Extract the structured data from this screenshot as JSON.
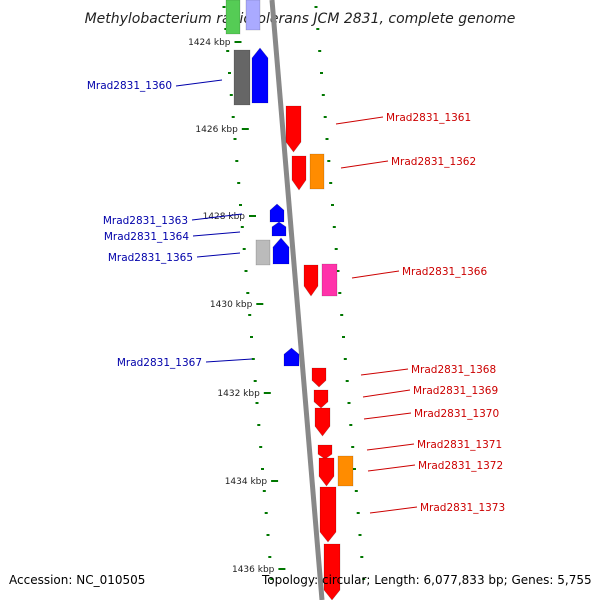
{
  "title": "Methylobacterium radiotolerans JCM 2831, complete genome",
  "accession": "Accession: NC_010505",
  "topology": "Topology: circular; Length: 6,077,833 bp; Genes: 5,755",
  "colors": {
    "forward": "#0000ff",
    "reverse": "#ff0000",
    "forward_label": "#0000aa",
    "reverse_label": "#cc0000",
    "tick": "#007700",
    "strand": "#888888",
    "gray_gene": "#666666",
    "light_gray_gene": "#bbbbbb",
    "orange_gene": "#ff8c00",
    "pink_gene": "#ff33aa",
    "green_gene": "#55cc55",
    "lavender_gene": "#aaaaff"
  },
  "scale_marks": [
    "1424 kbp",
    "1426 kbp",
    "1428 kbp",
    "1430 kbp",
    "1432 kbp",
    "1434 kbp",
    "1436 kbp"
  ],
  "genes_left": [
    "Mrad2831_1360",
    "Mrad2831_1363",
    "Mrad2831_1364",
    "Mrad2831_1365",
    "Mrad2831_1367"
  ],
  "genes_right": [
    "Mrad2831_1361",
    "Mrad2831_1362",
    "Mrad2831_1366",
    "Mrad2831_1368",
    "Mrad2831_1369",
    "Mrad2831_1370",
    "Mrad2831_1371",
    "Mrad2831_1372",
    "Mrad2831_1373"
  ]
}
